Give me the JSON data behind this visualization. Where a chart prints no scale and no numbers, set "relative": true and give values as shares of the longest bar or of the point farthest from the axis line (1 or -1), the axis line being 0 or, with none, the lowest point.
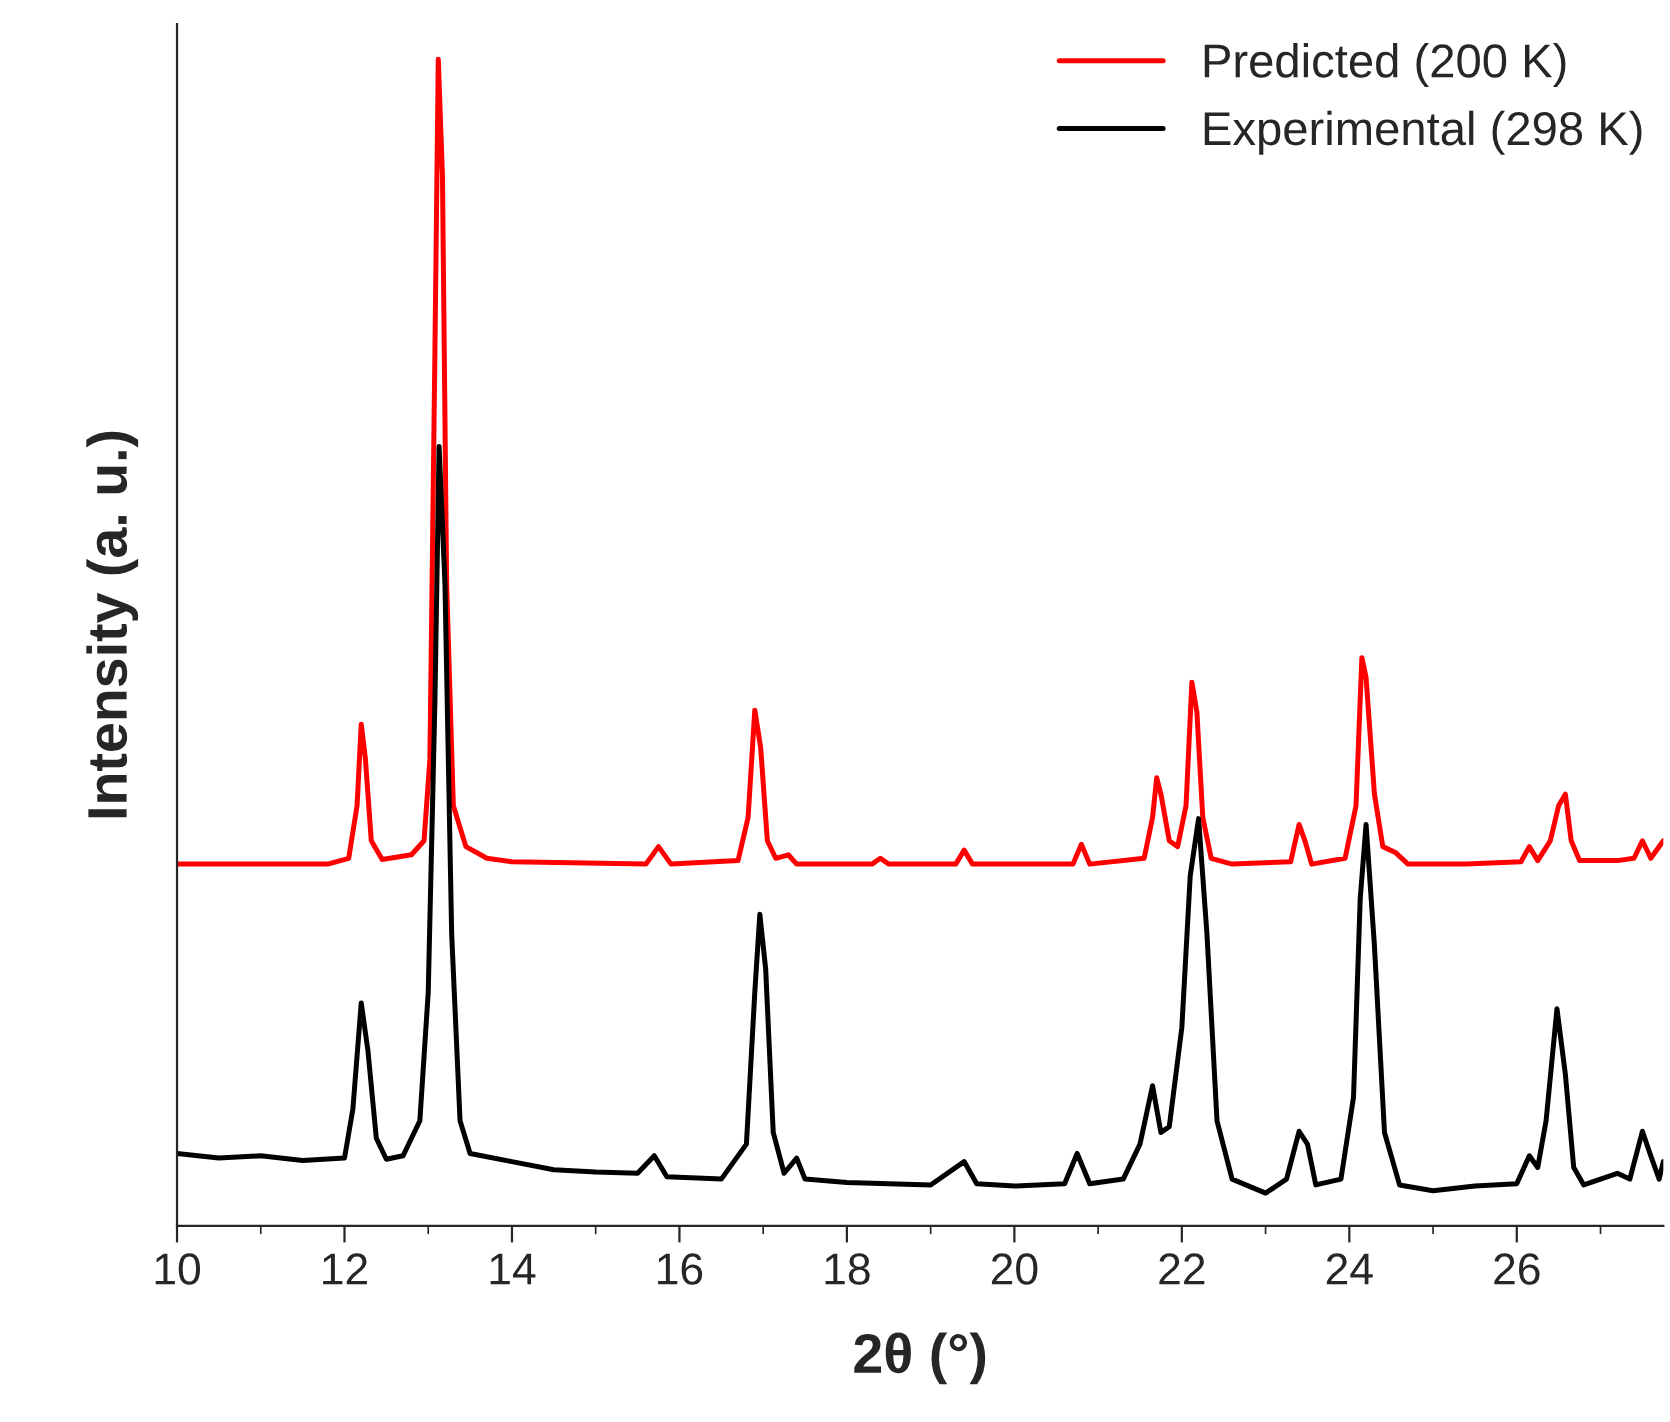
{
  "chart_data": {
    "type": "line",
    "xlabel": "2θ (°)",
    "ylabel": "Intensity (a. u.)",
    "relative": true,
    "legend": "top right",
    "grid": false,
    "xlim": [
      10,
      27.75
    ],
    "xticks": [
      10,
      12,
      14,
      16,
      18,
      20,
      22,
      24,
      26
    ],
    "series": [
      {
        "name": "Predicted (200 K)",
        "color": "#ff0000",
        "x": [
          10,
          11.8,
          12.05,
          12.15,
          12.2,
          12.25,
          12.32,
          12.45,
          12.8,
          12.95,
          13.02,
          13.08,
          13.12,
          13.17,
          13.22,
          13.3,
          13.45,
          13.7,
          14,
          15.6,
          15.75,
          15.9,
          16.7,
          16.82,
          16.9,
          16.97,
          17.05,
          17.15,
          17.3,
          17.4,
          18.3,
          18.4,
          18.5,
          19.3,
          19.4,
          19.5,
          20.7,
          20.8,
          20.9,
          21.55,
          21.65,
          21.7,
          21.75,
          21.85,
          21.95,
          22.05,
          22.12,
          22.18,
          22.25,
          22.35,
          22.6,
          23.3,
          23.4,
          23.47,
          23.55,
          23.95,
          24.08,
          24.15,
          24.2,
          24.3,
          24.4,
          24.55,
          24.7,
          25.4,
          26.05,
          26.15,
          26.25,
          26.4,
          26.5,
          26.58,
          26.65,
          26.75,
          27.2,
          27.4,
          27.5,
          27.6,
          27.75
        ],
        "values": [
          0.31,
          0.31,
          0.315,
          0.36,
          0.43,
          0.4,
          0.33,
          0.314,
          0.318,
          0.33,
          0.4,
          0.75,
          1.0,
          0.9,
          0.55,
          0.36,
          0.325,
          0.315,
          0.312,
          0.31,
          0.325,
          0.31,
          0.313,
          0.35,
          0.442,
          0.41,
          0.33,
          0.315,
          0.318,
          0.31,
          0.31,
          0.315,
          0.31,
          0.31,
          0.322,
          0.31,
          0.31,
          0.327,
          0.31,
          0.315,
          0.35,
          0.384,
          0.37,
          0.33,
          0.325,
          0.36,
          0.466,
          0.44,
          0.35,
          0.315,
          0.31,
          0.312,
          0.344,
          0.33,
          0.31,
          0.315,
          0.36,
          0.487,
          0.47,
          0.37,
          0.325,
          0.32,
          0.31,
          0.31,
          0.312,
          0.325,
          0.313,
          0.33,
          0.36,
          0.37,
          0.33,
          0.313,
          0.313,
          0.315,
          0.33,
          0.315,
          0.33
        ]
      },
      {
        "name": "Experimental (298 K)",
        "color": "#000000",
        "x": [
          10,
          10.5,
          11,
          11.5,
          12,
          12.1,
          12.2,
          12.28,
          12.38,
          12.5,
          12.7,
          12.9,
          13.0,
          13.08,
          13.13,
          13.2,
          13.28,
          13.38,
          13.5,
          14,
          14.5,
          15,
          15.5,
          15.7,
          15.85,
          16.5,
          16.8,
          16.9,
          16.96,
          17.03,
          17.12,
          17.25,
          17.4,
          17.5,
          18,
          18.5,
          19,
          19.4,
          19.55,
          20,
          20.6,
          20.75,
          20.9,
          21.3,
          21.5,
          21.65,
          21.75,
          21.85,
          22.0,
          22.1,
          22.2,
          22.3,
          22.42,
          22.6,
          23,
          23.25,
          23.4,
          23.5,
          23.6,
          23.9,
          24.05,
          24.13,
          24.2,
          24.3,
          24.42,
          24.6,
          25,
          25.5,
          26,
          26.15,
          26.25,
          26.35,
          26.48,
          26.58,
          26.68,
          26.8,
          27.2,
          27.35,
          27.5,
          27.6,
          27.7,
          27.75
        ],
        "values": [
          0.062,
          0.058,
          0.06,
          0.056,
          0.058,
          0.1,
          0.191,
          0.15,
          0.075,
          0.057,
          0.06,
          0.09,
          0.2,
          0.45,
          0.668,
          0.55,
          0.25,
          0.09,
          0.062,
          0.055,
          0.048,
          0.046,
          0.045,
          0.06,
          0.042,
          0.04,
          0.07,
          0.2,
          0.267,
          0.22,
          0.08,
          0.045,
          0.058,
          0.04,
          0.037,
          0.036,
          0.035,
          0.055,
          0.036,
          0.034,
          0.036,
          0.062,
          0.036,
          0.04,
          0.07,
          0.12,
          0.08,
          0.085,
          0.17,
          0.3,
          0.349,
          0.25,
          0.09,
          0.04,
          0.028,
          0.04,
          0.081,
          0.07,
          0.035,
          0.04,
          0.11,
          0.28,
          0.344,
          0.24,
          0.08,
          0.035,
          0.03,
          0.034,
          0.036,
          0.06,
          0.05,
          0.09,
          0.186,
          0.13,
          0.05,
          0.035,
          0.045,
          0.04,
          0.081,
          0.06,
          0.04,
          0.055
        ]
      }
    ]
  }
}
